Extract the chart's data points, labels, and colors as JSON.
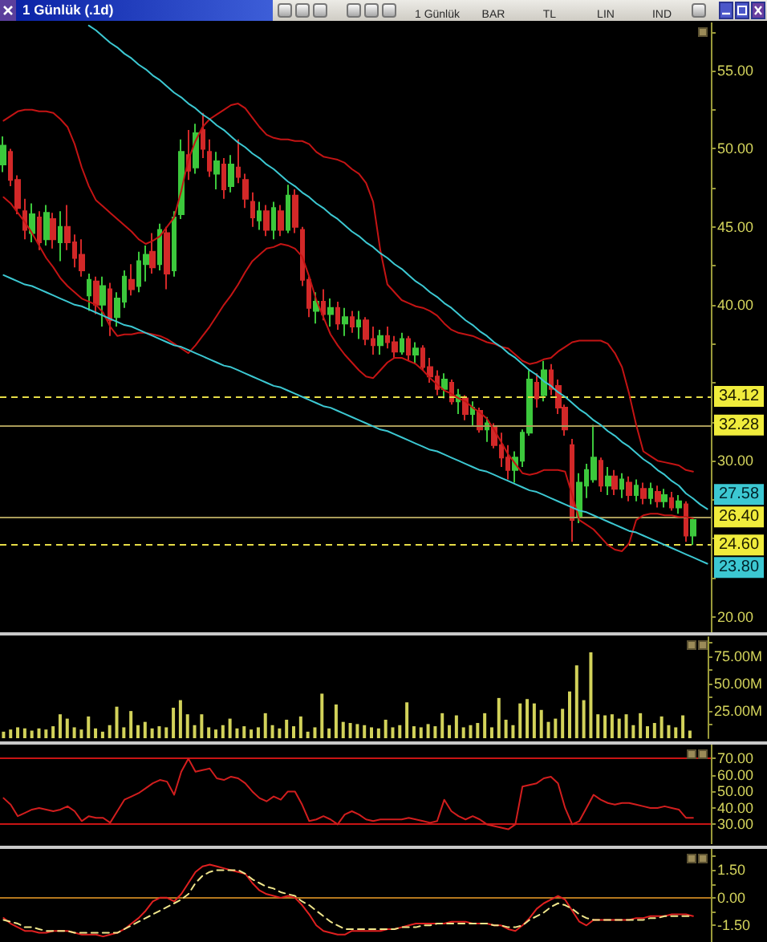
{
  "chart_data": [
    {
      "type": "candlestick",
      "title": "1 Günlük (.1d)",
      "annotations": [
        "1 Günlük",
        "BAR",
        "TL",
        "LIN",
        "IND"
      ],
      "categories": [
        null,
        null,
        null,
        null,
        null,
        null,
        null,
        null,
        null,
        null,
        null,
        null,
        null,
        null,
        null,
        null,
        null,
        null,
        null,
        null,
        null,
        null,
        null,
        null,
        null,
        null,
        null,
        null,
        null,
        null,
        null,
        null,
        null,
        null,
        null,
        null,
        null,
        null,
        null,
        null,
        null,
        null,
        null,
        null,
        null,
        null,
        null,
        null,
        null,
        null,
        null,
        null,
        null,
        null,
        null,
        null,
        null,
        null,
        null,
        null,
        null,
        null,
        null,
        null,
        null,
        null,
        null,
        null,
        null,
        null,
        null,
        null,
        null,
        null,
        null,
        null,
        null,
        null,
        null,
        null,
        null,
        null,
        null,
        null,
        null,
        null,
        null,
        null,
        null,
        null,
        null,
        null,
        null,
        null,
        null,
        null,
        null,
        null,
        null,
        null
      ],
      "ohlc": [
        [
          49.0,
          50.8,
          48.5,
          50.2
        ],
        [
          49.8,
          50.0,
          47.6,
          48.0
        ],
        [
          48.0,
          48.3,
          45.8,
          46.2
        ],
        [
          46.0,
          46.8,
          44.2,
          44.8
        ],
        [
          44.6,
          46.5,
          44.0,
          45.8
        ],
        [
          45.6,
          46.0,
          43.5,
          44.0
        ],
        [
          44.2,
          46.4,
          43.8,
          45.9
        ],
        [
          45.5,
          45.9,
          43.6,
          44.2
        ],
        [
          44.0,
          46.0,
          42.8,
          45.0
        ],
        [
          45.0,
          46.4,
          43.5,
          44.0
        ],
        [
          44.0,
          44.5,
          42.4,
          43.0
        ],
        [
          43.2,
          44.2,
          41.8,
          42.2
        ],
        [
          40.6,
          42.0,
          39.6,
          41.6
        ],
        [
          41.5,
          41.8,
          39.4,
          40.0
        ],
        [
          40.0,
          41.8,
          38.6,
          41.2
        ],
        [
          41.0,
          41.4,
          38.0,
          39.0
        ],
        [
          39.2,
          40.8,
          38.6,
          40.4
        ],
        [
          40.2,
          42.2,
          39.8,
          41.8
        ],
        [
          41.6,
          42.6,
          40.6,
          41.0
        ],
        [
          41.2,
          43.4,
          40.8,
          42.8
        ],
        [
          42.6,
          43.8,
          41.5,
          43.2
        ],
        [
          43.4,
          44.6,
          42.0,
          42.4
        ],
        [
          42.6,
          45.2,
          42.2,
          44.8
        ],
        [
          44.6,
          45.0,
          41.0,
          42.0
        ],
        [
          42.2,
          46.0,
          41.8,
          45.6
        ],
        [
          45.8,
          50.6,
          45.5,
          49.8
        ],
        [
          49.6,
          51.2,
          48.0,
          48.6
        ],
        [
          48.8,
          51.6,
          48.4,
          51.0
        ],
        [
          51.2,
          52.3,
          49.4,
          50.0
        ],
        [
          49.8,
          50.6,
          48.2,
          48.6
        ],
        [
          48.4,
          49.8,
          47.4,
          49.2
        ],
        [
          49.0,
          49.4,
          46.8,
          47.4
        ],
        [
          47.6,
          49.6,
          47.2,
          49.0
        ],
        [
          48.8,
          50.6,
          47.8,
          48.2
        ],
        [
          48.0,
          48.4,
          46.2,
          46.8
        ],
        [
          46.6,
          47.2,
          45.0,
          45.6
        ],
        [
          45.4,
          46.6,
          44.8,
          46.0
        ],
        [
          46.0,
          46.4,
          44.4,
          44.8
        ],
        [
          44.8,
          46.6,
          44.2,
          46.2
        ],
        [
          46.0,
          46.4,
          44.4,
          44.8
        ],
        [
          44.8,
          47.7,
          44.6,
          47.0
        ],
        [
          47.0,
          47.4,
          44.6,
          45.0
        ],
        [
          44.8,
          45.0,
          41.2,
          41.6
        ],
        [
          41.6,
          41.8,
          39.2,
          39.8
        ],
        [
          39.6,
          40.8,
          38.8,
          40.2
        ],
        [
          40.2,
          41.0,
          39.0,
          39.4
        ],
        [
          39.4,
          40.4,
          38.6,
          39.8
        ],
        [
          39.8,
          40.2,
          38.4,
          38.8
        ],
        [
          38.8,
          39.8,
          38.0,
          39.2
        ],
        [
          39.2,
          39.6,
          38.2,
          38.6
        ],
        [
          38.6,
          39.6,
          37.8,
          39.0
        ],
        [
          39.0,
          39.2,
          37.4,
          37.8
        ],
        [
          37.8,
          38.6,
          36.8,
          37.4
        ],
        [
          37.4,
          38.4,
          36.8,
          38.0
        ],
        [
          38.0,
          38.6,
          37.2,
          37.6
        ],
        [
          37.6,
          38.0,
          36.6,
          37.0
        ],
        [
          37.0,
          38.2,
          36.8,
          37.8
        ],
        [
          37.8,
          38.0,
          36.4,
          36.8
        ],
        [
          36.8,
          37.6,
          36.2,
          37.2
        ],
        [
          37.2,
          37.4,
          35.8,
          36.0
        ],
        [
          36.0,
          36.6,
          35.0,
          35.4
        ],
        [
          35.4,
          35.8,
          34.2,
          34.6
        ],
        [
          34.6,
          35.6,
          34.0,
          35.2
        ],
        [
          35.0,
          35.2,
          33.6,
          33.8
        ],
        [
          33.8,
          34.6,
          33.0,
          34.2
        ],
        [
          34.0,
          34.2,
          32.6,
          33.0
        ],
        [
          33.0,
          33.8,
          32.2,
          33.4
        ],
        [
          33.2,
          33.4,
          31.8,
          32.0
        ],
        [
          32.0,
          32.8,
          31.2,
          32.4
        ],
        [
          32.2,
          32.4,
          30.8,
          31.0
        ],
        [
          31.0,
          31.8,
          29.6,
          30.2
        ],
        [
          30.2,
          31.0,
          28.8,
          29.4
        ],
        [
          29.4,
          30.6,
          28.6,
          30.2
        ],
        [
          30.0,
          32.0,
          29.6,
          31.8
        ],
        [
          31.8,
          35.8,
          31.6,
          35.2
        ],
        [
          35.0,
          35.6,
          33.4,
          34.0
        ],
        [
          34.2,
          36.4,
          33.8,
          35.8
        ],
        [
          35.8,
          36.2,
          34.2,
          34.6
        ],
        [
          34.8,
          35.2,
          33.0,
          33.4
        ],
        [
          33.4,
          33.6,
          31.6,
          32.0
        ],
        [
          31.0,
          31.4,
          24.8,
          26.2
        ],
        [
          26.4,
          29.2,
          26.0,
          28.6
        ],
        [
          28.4,
          29.8,
          27.6,
          29.4
        ],
        [
          28.8,
          32.3,
          28.6,
          30.2
        ],
        [
          30.0,
          30.2,
          28.0,
          28.4
        ],
        [
          28.4,
          29.6,
          27.8,
          29.0
        ],
        [
          29.0,
          29.4,
          27.8,
          28.2
        ],
        [
          28.2,
          29.2,
          27.6,
          28.8
        ],
        [
          28.6,
          29.0,
          27.4,
          27.8
        ],
        [
          27.8,
          28.8,
          27.4,
          28.4
        ],
        [
          28.2,
          28.6,
          27.2,
          27.6
        ],
        [
          27.6,
          28.6,
          27.2,
          28.2
        ],
        [
          28.0,
          28.4,
          27.0,
          27.4
        ],
        [
          27.4,
          28.2,
          27.0,
          27.8
        ],
        [
          27.6,
          28.0,
          26.8,
          27.0
        ],
        [
          27.0,
          27.8,
          26.6,
          27.4
        ],
        [
          27.2,
          27.4,
          24.8,
          25.2
        ],
        [
          25.2,
          26.4,
          24.6,
          26.2
        ],
        null,
        null
      ],
      "colors": [
        "#3cc83c",
        "#d22828",
        "#d22828",
        "#d22828",
        "#3cc83c",
        "#d22828",
        "#3cc83c",
        "#d22828",
        "#3cc83c",
        "#d22828",
        "#d22828",
        "#d22828",
        "#3cc83c",
        "#d22828",
        "#3cc83c",
        "#d22828",
        "#3cc83c",
        "#3cc83c",
        "#d22828",
        "#3cc83c",
        "#3cc83c",
        "#d22828",
        "#3cc83c",
        "#d22828",
        "#3cc83c",
        "#3cc83c",
        "#d22828",
        "#3cc83c",
        "#d22828",
        "#d22828",
        "#3cc83c",
        "#d22828",
        "#3cc83c",
        "#d22828",
        "#d22828",
        "#d22828",
        "#3cc83c",
        "#d22828",
        "#3cc83c",
        "#d22828",
        "#3cc83c",
        "#d22828",
        "#d22828",
        "#d22828",
        "#3cc83c",
        "#d22828",
        "#3cc83c",
        "#d22828",
        "#3cc83c",
        "#d22828",
        "#3cc83c",
        "#d22828",
        "#d22828",
        "#3cc83c",
        "#d22828",
        "#d22828",
        "#3cc83c",
        "#d22828",
        "#3cc83c",
        "#d22828",
        "#d22828",
        "#d22828",
        "#3cc83c",
        "#d22828",
        "#3cc83c",
        "#d22828",
        "#3cc83c",
        "#d22828",
        "#3cc83c",
        "#d22828",
        "#d22828",
        "#d22828",
        "#3cc83c",
        "#3cc83c",
        "#3cc83c",
        "#d22828",
        "#3cc83c",
        "#d22828",
        "#d22828",
        "#d22828",
        "#d22828",
        "#3cc83c",
        "#3cc83c",
        "#3cc83c",
        "#d22828",
        "#3cc83c",
        "#d22828",
        "#3cc83c",
        "#d22828",
        "#3cc83c",
        "#d22828",
        "#3cc83c",
        "#d22828",
        "#3cc83c",
        "#d22828",
        "#3cc83c",
        "#d22828",
        "#3cc83c",
        null,
        null
      ],
      "series": [
        {
          "type": "line",
          "color": "#c41414",
          "values": [
            51.8,
            52.1,
            52.4,
            52.5,
            52.5,
            52.4,
            52.4,
            52.3,
            51.9,
            51.4,
            50.3,
            48.8,
            47.6,
            46.7,
            46.3,
            45.9,
            45.5,
            45.1,
            44.7,
            44.2,
            43.9,
            44.1,
            44.4,
            45.0,
            45.6,
            47.3,
            49.3,
            50.5,
            51.4,
            51.9,
            52.2,
            52.5,
            52.8,
            52.9,
            52.6,
            52.0,
            51.4,
            50.9,
            50.7,
            50.6,
            50.6,
            50.5,
            50.5,
            50.3,
            49.8,
            49.5,
            49.4,
            49.3,
            49.1,
            48.7,
            48.4,
            47.8,
            46.6,
            43.5,
            41.3,
            40.8,
            40.3,
            40.1,
            39.9,
            39.8,
            39.6,
            39.3,
            38.8,
            38.4,
            38.2,
            38.1,
            38.0,
            37.8,
            37.6,
            37.5,
            37.3,
            37.2,
            36.8,
            36.4,
            36.2,
            36.3,
            36.5,
            36.6,
            37.0,
            37.3,
            37.6,
            37.7,
            37.7,
            37.7,
            37.7,
            37.5,
            36.9,
            36.0,
            34.3,
            32.3,
            30.6,
            30.3,
            30.0,
            29.9,
            29.8,
            29.7,
            29.4,
            29.3,
            null,
            null
          ]
        },
        {
          "type": "line",
          "color": "#c41414",
          "values": [
            46.9,
            46.5,
            45.9,
            45.3,
            44.6,
            43.8,
            43.0,
            42.4,
            41.7,
            41.2,
            40.8,
            40.4,
            40.2,
            40.0,
            39.5,
            38.6,
            38.0,
            38.1,
            38.1,
            38.2,
            38.2,
            38.1,
            38.0,
            37.8,
            37.5,
            37.2,
            36.9,
            37.4,
            38.0,
            38.6,
            39.3,
            40.0,
            40.6,
            41.3,
            42.1,
            42.8,
            43.2,
            43.6,
            43.7,
            43.9,
            43.8,
            43.6,
            43.1,
            41.8,
            40.3,
            39.2,
            38.1,
            37.4,
            36.8,
            36.3,
            35.8,
            35.4,
            35.3,
            35.8,
            36.3,
            36.6,
            36.6,
            36.4,
            36.2,
            35.8,
            35.3,
            34.9,
            34.5,
            34.3,
            34.0,
            33.8,
            33.4,
            33.1,
            32.7,
            32.0,
            31.2,
            30.4,
            29.8,
            29.2,
            29.1,
            29.2,
            29.4,
            29.4,
            29.4,
            29.3,
            27.8,
            26.2,
            25.9,
            25.6,
            25.1,
            24.6,
            24.3,
            24.2,
            24.7,
            26.2,
            26.5,
            26.6,
            26.6,
            26.5,
            26.5,
            26.4,
            26.4,
            26.3,
            null,
            null
          ]
        },
        {
          "type": "line",
          "color": "#3cc8d2",
          "values": [
            null,
            null,
            null,
            null,
            null,
            null,
            null,
            null,
            null,
            null,
            null,
            null,
            57.9,
            57.6,
            57.2,
            56.8,
            56.5,
            56.1,
            55.8,
            55.4,
            55.1,
            54.7,
            54.4,
            54.0,
            53.6,
            53.3,
            52.9,
            52.6,
            52.2,
            51.9,
            51.5,
            51.2,
            50.8,
            50.4,
            50.1,
            49.7,
            49.4,
            49.0,
            48.7,
            48.3,
            47.9,
            47.6,
            47.2,
            46.9,
            46.5,
            46.2,
            45.8,
            45.5,
            45.1,
            44.7,
            44.4,
            44.0,
            43.7,
            43.3,
            43.0,
            42.6,
            42.3,
            41.9,
            41.5,
            41.2,
            40.8,
            40.5,
            40.1,
            39.8,
            39.4,
            39.0,
            38.7,
            38.3,
            38.0,
            37.6,
            37.3,
            36.9,
            36.6,
            36.2,
            35.8,
            35.5,
            35.1,
            34.8,
            34.4,
            34.1,
            33.7,
            33.3,
            33.0,
            32.6,
            32.3,
            31.9,
            31.6,
            31.2,
            30.9,
            30.5,
            30.1,
            29.8,
            29.4,
            29.1,
            28.7,
            28.4,
            27.9,
            27.58,
            27.2,
            26.9
          ],
          "value_labels": [
            null,
            null,
            null,
            null,
            null,
            null,
            null,
            null,
            null,
            null,
            null,
            null,
            null,
            null,
            null,
            null,
            null,
            null,
            null,
            null,
            null,
            null,
            null,
            null,
            null,
            null,
            null,
            null,
            null,
            null,
            null,
            null,
            null,
            null,
            null,
            null,
            null,
            null,
            null,
            null,
            null,
            null,
            null,
            null,
            null,
            null,
            null,
            null,
            null,
            null,
            null,
            null,
            null,
            null,
            null,
            null,
            null,
            null,
            null,
            null,
            null,
            null,
            null,
            null,
            null,
            null,
            null,
            null,
            null,
            null,
            null,
            null,
            null,
            null,
            null,
            null,
            null,
            null,
            null,
            null,
            null,
            null,
            null,
            null,
            null,
            null,
            null,
            null,
            null,
            null,
            null,
            null,
            null,
            null,
            null,
            null,
            null,
            "27.58",
            null,
            null
          ]
        },
        {
          "type": "line",
          "color": "#3cc8d2",
          "values": [
            41.9,
            41.7,
            41.5,
            41.3,
            41.2,
            41.0,
            40.8,
            40.6,
            40.4,
            40.2,
            40.0,
            39.9,
            39.7,
            39.5,
            39.3,
            39.1,
            38.9,
            38.7,
            38.6,
            38.4,
            38.2,
            38.0,
            37.8,
            37.6,
            37.4,
            37.3,
            37.1,
            36.9,
            36.7,
            36.5,
            36.3,
            36.1,
            36.0,
            35.8,
            35.6,
            35.4,
            35.2,
            35.0,
            34.8,
            34.7,
            34.5,
            34.3,
            34.1,
            33.9,
            33.7,
            33.5,
            33.4,
            33.2,
            33.0,
            32.8,
            32.6,
            32.4,
            32.2,
            32.0,
            31.9,
            31.7,
            31.5,
            31.3,
            31.1,
            30.9,
            30.7,
            30.6,
            30.4,
            30.2,
            30.0,
            29.8,
            29.6,
            29.4,
            29.3,
            29.1,
            28.9,
            28.7,
            28.5,
            28.3,
            28.1,
            28.0,
            27.8,
            27.6,
            27.4,
            27.2,
            27.0,
            26.8,
            26.7,
            26.5,
            26.3,
            26.1,
            25.9,
            25.7,
            25.5,
            25.4,
            25.2,
            25.0,
            24.8,
            24.6,
            24.4,
            24.2,
            24.0,
            23.8,
            23.6,
            23.4
          ],
          "value_labels": [
            null,
            null,
            null,
            null,
            null,
            null,
            null,
            null,
            null,
            null,
            null,
            null,
            null,
            null,
            null,
            null,
            null,
            null,
            null,
            null,
            null,
            null,
            null,
            null,
            null,
            null,
            null,
            null,
            null,
            null,
            null,
            null,
            null,
            null,
            null,
            null,
            null,
            null,
            null,
            null,
            null,
            null,
            null,
            null,
            null,
            null,
            null,
            null,
            null,
            null,
            null,
            null,
            null,
            null,
            null,
            null,
            null,
            null,
            null,
            null,
            null,
            null,
            null,
            null,
            null,
            null,
            null,
            null,
            null,
            null,
            null,
            null,
            null,
            null,
            null,
            null,
            null,
            null,
            null,
            null,
            null,
            null,
            null,
            null,
            null,
            null,
            null,
            null,
            null,
            null,
            null,
            null,
            null,
            null,
            null,
            null,
            null,
            "23.80",
            null,
            null
          ]
        }
      ],
      "ylim": [
        19,
        58.1
      ],
      "yticks": [
        {
          "value": 20,
          "label": "20.00"
        },
        {
          "value": 22.5,
          "label": null
        },
        {
          "value": 25,
          "label": null
        },
        {
          "value": 27.5,
          "label": null
        },
        {
          "value": 30,
          "label": "30.00"
        },
        {
          "value": 32.5,
          "label": null
        },
        {
          "value": 35,
          "label": null
        },
        {
          "value": 37.5,
          "label": null
        },
        {
          "value": 40,
          "label": "40.00"
        },
        {
          "value": 42.5,
          "label": null
        },
        {
          "value": 45,
          "label": "45.00"
        },
        {
          "value": 47.5,
          "label": null
        },
        {
          "value": 50,
          "label": "50.00"
        },
        {
          "value": 52.5,
          "label": null
        },
        {
          "value": 55,
          "label": "55.00"
        },
        {
          "value": 57.5,
          "label": null
        }
      ],
      "ref_lines": [
        {
          "axis": "y",
          "value": 34.12,
          "label": "34.12",
          "color": "#e6dc46",
          "line_style": "dashed"
        },
        {
          "axis": "y",
          "value": 32.28,
          "label": "32.28",
          "color": "#aa9c5a",
          "line_style": "solid"
        },
        {
          "axis": "y",
          "value": 26.4,
          "label": "26.40",
          "color": "#aa9c5a",
          "line_style": "solid"
        },
        {
          "axis": "y",
          "value": 24.6,
          "label": "24.60",
          "color": "#e6dc46",
          "line_style": "dashed"
        }
      ],
      "tick_labels": "y"
    },
    {
      "type": "bar",
      "categories": [
        null,
        null,
        null,
        null,
        null,
        null,
        null,
        null,
        null,
        null,
        null,
        null,
        null,
        null,
        null,
        null,
        null,
        null,
        null,
        null,
        null,
        null,
        null,
        null,
        null,
        null,
        null,
        null,
        null,
        null,
        null,
        null,
        null,
        null,
        null,
        null,
        null,
        null,
        null,
        null,
        null,
        null,
        null,
        null,
        null,
        null,
        null,
        null,
        null,
        null,
        null,
        null,
        null,
        null,
        null,
        null,
        null,
        null,
        null,
        null,
        null,
        null,
        null,
        null,
        null,
        null,
        null,
        null,
        null,
        null,
        null,
        null,
        null,
        null,
        null,
        null,
        null,
        null,
        null,
        null,
        null,
        null,
        null,
        null,
        null,
        null,
        null,
        null,
        null,
        null,
        null,
        null,
        null,
        null,
        null,
        null,
        null,
        null,
        null,
        null
      ],
      "values": [
        6,
        8,
        10,
        9,
        7,
        9,
        8,
        11,
        22,
        18,
        10,
        8,
        20,
        9,
        6,
        12,
        29,
        10,
        25,
        12,
        15,
        9,
        11,
        10,
        28,
        35,
        22,
        12,
        22,
        10,
        8,
        12,
        18,
        9,
        11,
        8,
        10,
        23,
        12,
        9,
        17,
        11,
        20,
        6,
        10,
        41,
        9,
        31,
        15,
        14,
        13,
        12,
        10,
        9,
        17,
        10,
        12,
        33,
        11,
        10,
        13,
        11,
        23,
        12,
        21,
        10,
        12,
        14,
        23,
        10,
        37,
        17,
        12,
        32,
        36,
        32,
        26,
        15,
        18,
        27,
        43,
        67,
        35,
        79,
        22,
        21,
        22,
        18,
        22,
        12,
        23,
        11,
        14,
        20,
        12,
        10,
        21,
        7,
        null,
        null
      ],
      "color": "#d2d25a",
      "ylim": [
        0,
        93
      ],
      "yticks": [
        {
          "value": 12.5,
          "label": null
        },
        {
          "value": 25,
          "label": "25.00M"
        },
        {
          "value": 37.5,
          "label": null
        },
        {
          "value": 50,
          "label": "50.00M"
        },
        {
          "value": 62.5,
          "label": null
        },
        {
          "value": 75,
          "label": "75.00M"
        },
        {
          "value": 87.5,
          "label": null
        }
      ],
      "tick_labels": "y"
    },
    {
      "type": "line",
      "categories": [
        null,
        null,
        null,
        null,
        null,
        null,
        null,
        null,
        null,
        null,
        null,
        null,
        null,
        null,
        null,
        null,
        null,
        null,
        null,
        null,
        null,
        null,
        null,
        null,
        null,
        null,
        null,
        null,
        null,
        null,
        null,
        null,
        null,
        null,
        null,
        null,
        null,
        null,
        null,
        null,
        null,
        null,
        null,
        null,
        null,
        null,
        null,
        null,
        null,
        null,
        null,
        null,
        null,
        null,
        null,
        null,
        null,
        null,
        null,
        null,
        null,
        null,
        null,
        null,
        null,
        null,
        null,
        null,
        null,
        null,
        null,
        null,
        null,
        null,
        null,
        null,
        null,
        null,
        null,
        null,
        null,
        null,
        null,
        null,
        null,
        null,
        null,
        null,
        null,
        null,
        null,
        null,
        null,
        null,
        null,
        null,
        null,
        null,
        null,
        null
      ],
      "series": [
        {
          "color": "#d21e1e",
          "values": [
            46,
            42,
            35,
            37,
            39,
            40,
            39,
            38,
            39,
            41,
            38,
            32,
            35,
            34,
            34,
            31,
            38,
            45,
            47,
            49,
            52,
            55,
            57,
            56,
            48,
            62,
            70,
            62,
            63,
            64,
            58,
            57,
            59,
            58,
            55,
            50,
            46,
            44,
            47,
            45,
            50,
            50,
            42,
            32,
            33,
            35,
            33,
            30,
            36,
            38,
            36,
            33,
            32,
            33,
            33,
            33,
            33,
            34,
            33,
            32,
            31,
            32,
            45,
            38,
            35,
            33,
            35,
            33,
            30,
            29,
            28,
            27,
            30,
            53,
            54,
            55,
            58,
            59,
            55,
            40,
            30,
            32,
            40,
            48,
            45,
            43,
            42,
            43,
            43,
            42,
            41,
            40,
            40,
            41,
            40,
            39,
            34,
            34,
            null,
            null
          ]
        }
      ],
      "ylim": [
        18,
        78.5
      ],
      "yticks": [
        {
          "value": 30,
          "label": "30.00"
        },
        {
          "value": 40,
          "label": "40.00"
        },
        {
          "value": 50,
          "label": "50.00"
        },
        {
          "value": 60,
          "label": "60.00"
        },
        {
          "value": 70,
          "label": "70.00"
        }
      ],
      "ref_lines": [
        {
          "axis": "y",
          "value": 70,
          "color": "#c81414"
        },
        {
          "axis": "y",
          "value": 30,
          "color": "#c81414"
        }
      ],
      "tick_labels": "y"
    },
    {
      "type": "line",
      "categories": [
        null,
        null,
        null,
        null,
        null,
        null,
        null,
        null,
        null,
        null,
        null,
        null,
        null,
        null,
        null,
        null,
        null,
        null,
        null,
        null,
        null,
        null,
        null,
        null,
        null,
        null,
        null,
        null,
        null,
        null,
        null,
        null,
        null,
        null,
        null,
        null,
        null,
        null,
        null,
        null,
        null,
        null,
        null,
        null,
        null,
        null,
        null,
        null,
        null,
        null,
        null,
        null,
        null,
        null,
        null,
        null,
        null,
        null,
        null,
        null,
        null,
        null,
        null,
        null,
        null,
        null,
        null,
        null,
        null,
        null,
        null,
        null,
        null,
        null,
        null,
        null,
        null,
        null,
        null,
        null,
        null,
        null,
        null,
        null,
        null,
        null,
        null,
        null,
        null,
        null,
        null,
        null,
        null,
        null,
        null,
        null,
        null,
        null,
        null,
        null
      ],
      "series": [
        {
          "color": "#e02020",
          "values": [
            -1.1,
            -1.4,
            -1.6,
            -1.8,
            -1.8,
            -1.9,
            -1.9,
            -1.8,
            -1.8,
            -1.8,
            -1.9,
            -2.0,
            -2.0,
            -2.0,
            -2.1,
            -2.0,
            -1.9,
            -1.7,
            -1.4,
            -1.1,
            -0.7,
            -0.2,
            0.0,
            0.0,
            -0.2,
            0.2,
            0.8,
            1.4,
            1.7,
            1.8,
            1.7,
            1.6,
            1.5,
            1.4,
            1.3,
            0.8,
            0.4,
            0.2,
            0.1,
            0.0,
            0.1,
            0.0,
            -0.4,
            -0.9,
            -1.5,
            -1.8,
            -1.9,
            -2.0,
            -2.0,
            -1.8,
            -1.8,
            -1.8,
            -1.8,
            -1.8,
            -1.7,
            -1.7,
            -1.6,
            -1.5,
            -1.4,
            -1.4,
            -1.4,
            -1.4,
            -1.4,
            -1.3,
            -1.3,
            -1.3,
            -1.4,
            -1.4,
            -1.4,
            -1.5,
            -1.5,
            -1.7,
            -1.8,
            -1.5,
            -1.1,
            -0.6,
            -0.3,
            -0.1,
            0.1,
            -0.1,
            -0.7,
            -1.3,
            -1.5,
            -1.2,
            -1.2,
            -1.2,
            -1.2,
            -1.2,
            -1.2,
            -1.1,
            -1.1,
            -1.0,
            -1.0,
            -1.0,
            -0.9,
            -0.9,
            -0.9,
            -1.0,
            null,
            null
          ]
        },
        {
          "color": "#f0e68c",
          "line_style": "dashed",
          "values": [
            -1.2,
            -1.3,
            -1.4,
            -1.6,
            -1.6,
            -1.7,
            -1.8,
            -1.8,
            -1.8,
            -1.8,
            -1.9,
            -1.9,
            -1.9,
            -1.9,
            -1.9,
            -1.9,
            -1.9,
            -1.7,
            -1.5,
            -1.3,
            -1.1,
            -0.9,
            -0.7,
            -0.5,
            -0.3,
            -0.1,
            0.2,
            0.8,
            1.2,
            1.4,
            1.5,
            1.5,
            1.5,
            1.5,
            1.3,
            1.0,
            0.8,
            0.6,
            0.5,
            0.3,
            0.2,
            0.1,
            -0.2,
            -0.4,
            -0.7,
            -1.0,
            -1.3,
            -1.5,
            -1.7,
            -1.7,
            -1.7,
            -1.7,
            -1.7,
            -1.7,
            -1.7,
            -1.7,
            -1.6,
            -1.6,
            -1.6,
            -1.5,
            -1.5,
            -1.4,
            -1.4,
            -1.4,
            -1.4,
            -1.4,
            -1.4,
            -1.4,
            -1.4,
            -1.5,
            -1.5,
            -1.6,
            -1.6,
            -1.5,
            -1.2,
            -1.0,
            -0.8,
            -0.5,
            -0.3,
            -0.4,
            -0.6,
            -0.9,
            -1.1,
            -1.2,
            -1.2,
            -1.2,
            -1.2,
            -1.2,
            -1.2,
            -1.2,
            -1.2,
            -1.1,
            -1.1,
            -1.0,
            -1.0,
            -1.0,
            -1.0,
            -1.0,
            null,
            null
          ]
        }
      ],
      "ylim": [
        -2.4,
        2.65
      ],
      "yticks": [
        {
          "value": -1.5,
          "label": "-1.50"
        },
        {
          "value": -0.75,
          "label": null
        },
        {
          "value": 0,
          "label": "0.00"
        },
        {
          "value": 0.75,
          "label": null
        },
        {
          "value": 1.5,
          "label": "1.50"
        },
        {
          "value": 2.25,
          "label": null
        }
      ],
      "ref_lines": [
        {
          "axis": "y",
          "value": 0,
          "color": "#b4781e"
        }
      ],
      "tick_labels": "y"
    }
  ]
}
